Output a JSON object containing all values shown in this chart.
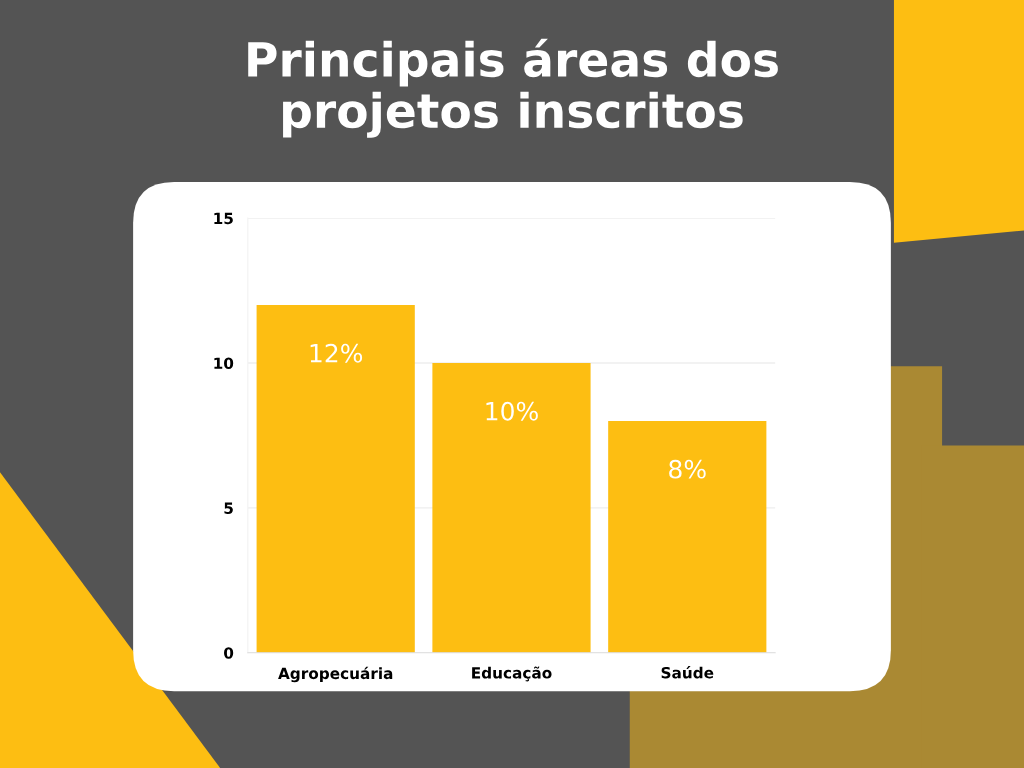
{
  "chart_data": {
    "type": "bar",
    "title": "Principais áreas dos\nprojetos inscritos",
    "categories": [
      "Agropecuária",
      "Educação",
      "Saúde"
    ],
    "values": [
      12,
      10,
      8
    ],
    "color": "#fdbe12",
    "value_labels": [
      "12%",
      "10%",
      "8%"
    ],
    "ylim": [
      0,
      15
    ],
    "yticks": [
      0,
      5,
      10,
      15
    ],
    "grid": "y",
    "legend": false
  }
}
